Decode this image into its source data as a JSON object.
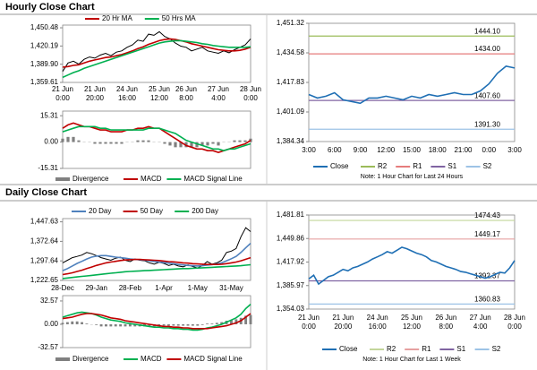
{
  "sections": [
    {
      "title": "Hourly Close Chart"
    },
    {
      "title": "Daily Close Chart"
    }
  ],
  "chart_data": [
    {
      "type": "line",
      "legend": "top",
      "categories": [
        [
          "21 Jun",
          "0:00"
        ],
        null,
        null,
        null,
        null,
        null,
        [
          "21 Jun",
          "20:00"
        ],
        null,
        null,
        null,
        null,
        null,
        [
          "24 Jun",
          "16:00"
        ],
        null,
        null,
        null,
        null,
        null,
        [
          "25 Jun",
          "12:00"
        ],
        null,
        null,
        null,
        null,
        [
          "26 Jun",
          "8:00"
        ],
        null,
        null,
        null,
        null,
        null,
        [
          "27 Jun",
          "4:00"
        ],
        null,
        null,
        null,
        null,
        null,
        [
          "28 Jun",
          "0:00"
        ]
      ],
      "ylim": [
        1359.61,
        1455
      ],
      "yticks": [
        {
          "value": 1359.61,
          "label": "1,359.61"
        },
        {
          "value": 1389.9,
          "label": "1,389.90"
        },
        {
          "value": 1420.19,
          "label": "1,420.19"
        },
        {
          "value": 1450.48,
          "label": "1,450.48"
        }
      ],
      "series": [
        {
          "color": "#000000",
          "values": [
            1378,
            1392,
            1395,
            1390,
            1398,
            1402,
            1400,
            1405,
            1408,
            1404,
            1410,
            1412,
            1418,
            1422,
            1430,
            1428,
            1440,
            1438,
            1444,
            1436,
            1432,
            1425,
            1420,
            1418,
            1412,
            1415,
            1418,
            1412,
            1410,
            1408,
            1412,
            1409,
            1414,
            1418,
            1422,
            1432
          ]
        },
        {
          "name": "20 Hr MA",
          "color": "#c00000",
          "values": [
            1385,
            1386,
            1388,
            1389,
            1392,
            1395,
            1397,
            1399,
            1401,
            1402,
            1404,
            1406,
            1409,
            1412,
            1416,
            1419,
            1423,
            1426,
            1429,
            1431,
            1432,
            1431,
            1429,
            1427,
            1424,
            1422,
            1420,
            1418,
            1416,
            1414,
            1413,
            1412,
            1412,
            1413,
            1415,
            1418
          ]
        },
        {
          "name": "50 Hrs MA",
          "color": "#00b050",
          "values": [
            1368,
            1372,
            1376,
            1379,
            1383,
            1386,
            1389,
            1392,
            1395,
            1398,
            1401,
            1404,
            1407,
            1410,
            1413,
            1416,
            1419,
            1422,
            1425,
            1427,
            1428,
            1429,
            1429,
            1428,
            1427,
            1426,
            1424,
            1423,
            1421,
            1420,
            1419,
            1418,
            1418,
            1418,
            1418,
            1419
          ]
        }
      ]
    },
    {
      "type": "line",
      "legend": "bottom",
      "ylim": [
        -15.31,
        18
      ],
      "yticks": [
        -15.31,
        {
          "value": 0,
          "label": "0.00"
        },
        15.31
      ],
      "series": [
        {
          "name": "Divergence",
          "type": "bar",
          "color": "#808080",
          "values": [
            2,
            3,
            3,
            1,
            0,
            0,
            -1,
            -1,
            -1,
            -1,
            -1,
            -1,
            0,
            0,
            1,
            1,
            1,
            0,
            0,
            -1,
            -2,
            -3,
            -3,
            -3,
            -3,
            -3,
            -2,
            -2,
            -1,
            -2,
            0,
            0,
            1,
            1,
            1,
            2
          ]
        },
        {
          "name": "MACD",
          "color": "#c00000",
          "values": [
            8,
            10,
            11,
            10,
            9,
            9,
            8,
            7,
            7,
            6,
            6,
            6,
            7,
            7,
            8,
            8,
            9,
            8,
            8,
            6,
            4,
            2,
            0,
            -2,
            -3,
            -4,
            -4,
            -5,
            -5,
            -6,
            -5,
            -4,
            -3,
            -2,
            -1,
            1
          ]
        },
        {
          "name": "MACD Signal Line",
          "color": "#00b050",
          "values": [
            6,
            7,
            8,
            9,
            9,
            9,
            9,
            8,
            8,
            7,
            7,
            7,
            7,
            7,
            7,
            7,
            8,
            8,
            8,
            7,
            6,
            5,
            3,
            1,
            0,
            -1,
            -2,
            -3,
            -4,
            -4,
            -5,
            -4,
            -4,
            -3,
            -2,
            -1
          ]
        }
      ]
    },
    {
      "type": "line",
      "legend": "bottom",
      "note": "Note: 1 Hour Chart for Last 24 Hours",
      "categories": [
        [
          "3:00"
        ],
        null,
        null,
        [
          "6:00"
        ],
        null,
        null,
        [
          "9:00"
        ],
        null,
        null,
        [
          "12:00"
        ],
        null,
        null,
        [
          "15:00"
        ],
        null,
        null,
        [
          "18:00"
        ],
        null,
        null,
        [
          "21:00"
        ],
        null,
        null,
        [
          "0:00"
        ],
        null,
        null,
        [
          "3:00"
        ]
      ],
      "ylim": [
        1384.34,
        1451.32
      ],
      "yticks": [
        {
          "value": 1384.34,
          "label": "1,384.34"
        },
        {
          "value": 1401.09,
          "label": "1,401.09"
        },
        {
          "value": 1417.83,
          "label": "1,417.83"
        },
        {
          "value": 1434.58,
          "label": "1,434.58"
        },
        {
          "value": 1451.32,
          "label": "1,451.32"
        }
      ],
      "series": [
        {
          "name": "Close",
          "color": "#1f6fb4",
          "values": [
            1411,
            1409,
            1410,
            1412,
            1408,
            1407,
            1406,
            1409,
            1409,
            1410,
            1409,
            1408,
            1410,
            1409,
            1411,
            1410,
            1411,
            1412,
            1411,
            1411,
            1413,
            1417,
            1423,
            1427,
            1426
          ]
        }
      ],
      "levels": [
        {
          "name": "R2",
          "value": 1444.1,
          "label": "1444.10",
          "color": "#9bbb59"
        },
        {
          "name": "R1",
          "value": 1434,
          "label": "1434.00",
          "color": "#e67c7c"
        },
        {
          "name": "S1",
          "value": 1407.6,
          "label": "1407.60",
          "color": "#8064a2"
        },
        {
          "name": "S2",
          "value": 1391.3,
          "label": "1391.30",
          "color": "#9dc3e6"
        }
      ]
    },
    {
      "type": "line",
      "legend": "top",
      "categories": [
        [
          "28-Dec"
        ],
        null,
        null,
        null,
        null,
        null,
        null,
        [
          "29-Jan"
        ],
        null,
        null,
        null,
        null,
        null,
        null,
        [
          "28-Feb"
        ],
        null,
        null,
        null,
        null,
        null,
        null,
        [
          "1-Apr"
        ],
        null,
        null,
        null,
        null,
        null,
        null,
        [
          "1-May"
        ],
        null,
        null,
        null,
        null,
        null,
        null,
        [
          "31-May"
        ],
        null,
        null,
        null,
        null
      ],
      "ylim": [
        1222.65,
        1460
      ],
      "yticks": [
        {
          "value": 1222.65,
          "label": "1,222.65"
        },
        {
          "value": 1297.64,
          "label": "1,297.64"
        },
        {
          "value": 1372.64,
          "label": "1,372.64"
        },
        {
          "value": 1447.63,
          "label": "1,447.63"
        }
      ],
      "series": [
        {
          "color": "#000000",
          "values": [
            1290,
            1300,
            1310,
            1315,
            1320,
            1330,
            1325,
            1318,
            1310,
            1305,
            1300,
            1308,
            1312,
            1300,
            1295,
            1305,
            1300,
            1298,
            1290,
            1285,
            1292,
            1288,
            1280,
            1285,
            1278,
            1275,
            1282,
            1276,
            1270,
            1280,
            1295,
            1285,
            1290,
            1300,
            1330,
            1335,
            1345,
            1390,
            1425,
            1410
          ]
        },
        {
          "name": "20 Day",
          "color": "#4f81bd",
          "values": [
            1260,
            1268,
            1278,
            1288,
            1296,
            1305,
            1312,
            1316,
            1318,
            1318,
            1315,
            1312,
            1310,
            1308,
            1305,
            1303,
            1302,
            1300,
            1298,
            1295,
            1293,
            1291,
            1289,
            1287,
            1284,
            1282,
            1280,
            1279,
            1278,
            1279,
            1281,
            1283,
            1286,
            1290,
            1298,
            1306,
            1315,
            1330,
            1348,
            1365
          ]
        },
        {
          "name": "50 Day",
          "color": "#c00000",
          "values": [
            1245,
            1248,
            1252,
            1257,
            1262,
            1268,
            1274,
            1280,
            1285,
            1290,
            1293,
            1296,
            1299,
            1301,
            1302,
            1303,
            1303,
            1302,
            1301,
            1300,
            1299,
            1297,
            1295,
            1294,
            1292,
            1290,
            1289,
            1287,
            1286,
            1285,
            1284,
            1284,
            1284,
            1285,
            1287,
            1290,
            1293,
            1298,
            1304,
            1310
          ]
        },
        {
          "name": "200 Day",
          "color": "#00b050",
          "values": [
            1230,
            1232,
            1234,
            1236,
            1238,
            1240,
            1242,
            1244,
            1246,
            1248,
            1250,
            1252,
            1254,
            1256,
            1257,
            1258,
            1259,
            1260,
            1261,
            1262,
            1263,
            1264,
            1265,
            1266,
            1267,
            1268,
            1268,
            1269,
            1270,
            1271,
            1272,
            1273,
            1274,
            1275,
            1276,
            1277,
            1278,
            1279,
            1281,
            1283
          ]
        }
      ]
    },
    {
      "type": "line",
      "legend": "bottom",
      "ylim": [
        -32.57,
        40
      ],
      "yticks": [
        -32.57,
        {
          "value": 0,
          "label": "0.00"
        },
        32.57
      ],
      "series": [
        {
          "name": "Divergence",
          "type": "bar",
          "color": "#808080",
          "values": [
            2,
            3,
            4,
            4,
            3,
            1,
            0,
            -1,
            -3,
            -3,
            -3,
            -3,
            -3,
            -3,
            -3,
            -3,
            -3,
            -3,
            -3,
            -3,
            -2,
            -2,
            -2,
            -2,
            -2,
            -2,
            -2,
            -2,
            -2,
            -1,
            1,
            1,
            2,
            3,
            5,
            6,
            7,
            9,
            12,
            13
          ]
        },
        {
          "name": "MACD",
          "color": "#00b050",
          "values": [
            10,
            12,
            14,
            16,
            17,
            16,
            15,
            13,
            10,
            8,
            6,
            5,
            4,
            2,
            1,
            0,
            -1,
            -2,
            -3,
            -4,
            -4,
            -5,
            -5,
            -6,
            -6,
            -7,
            -7,
            -8,
            -8,
            -7,
            -5,
            -4,
            -2,
            0,
            3,
            6,
            9,
            14,
            22,
            28
          ]
        },
        {
          "name": "MACD Signal Line",
          "color": "#c00000",
          "values": [
            8,
            9,
            10,
            12,
            14,
            15,
            15,
            14,
            13,
            11,
            9,
            8,
            7,
            5,
            4,
            3,
            2,
            1,
            0,
            -1,
            -2,
            -3,
            -3,
            -4,
            -4,
            -5,
            -5,
            -6,
            -6,
            -6,
            -6,
            -5,
            -4,
            -3,
            -2,
            0,
            2,
            5,
            10,
            15
          ]
        }
      ]
    },
    {
      "type": "line",
      "legend": "bottom",
      "note": "Note: 1 Hour Chart for Last 1 Week",
      "categories": [
        [
          "21 Jun",
          "0:00"
        ],
        null,
        null,
        null,
        null,
        null,
        null,
        [
          "21 Jun",
          "20:00"
        ],
        null,
        null,
        null,
        null,
        null,
        null,
        [
          "24 Jun",
          "16:00"
        ],
        null,
        null,
        null,
        null,
        null,
        null,
        [
          "25 Jun",
          "12:00"
        ],
        null,
        null,
        null,
        null,
        null,
        null,
        [
          "26 Jun",
          "8:00"
        ],
        null,
        null,
        null,
        null,
        null,
        null,
        [
          "27 Jun",
          "4:00"
        ],
        null,
        null,
        null,
        null,
        null,
        null,
        [
          "28 Jun",
          "0:00"
        ]
      ],
      "ylim": [
        1354.03,
        1481.81
      ],
      "yticks": [
        {
          "value": 1354.03,
          "label": "1,354.03"
        },
        {
          "value": 1385.97,
          "label": "1,385.97"
        },
        {
          "value": 1417.92,
          "label": "1,417.92"
        },
        {
          "value": 1449.86,
          "label": "1,449.86"
        },
        {
          "value": 1481.81,
          "label": "1,481.81"
        }
      ],
      "series": [
        {
          "name": "Close",
          "color": "#1f6fb4",
          "values": [
            1395,
            1400,
            1388,
            1393,
            1398,
            1400,
            1404,
            1408,
            1406,
            1410,
            1412,
            1415,
            1418,
            1422,
            1425,
            1428,
            1432,
            1430,
            1434,
            1438,
            1436,
            1433,
            1430,
            1428,
            1425,
            1420,
            1418,
            1415,
            1412,
            1410,
            1408,
            1405,
            1404,
            1402,
            1400,
            1398,
            1396,
            1398,
            1401,
            1404,
            1403,
            1410,
            1420
          ]
        }
      ],
      "levels": [
        {
          "name": "R2",
          "value": 1474.43,
          "label": "1474.43",
          "color": "#c3d69b"
        },
        {
          "name": "R1",
          "value": 1449.17,
          "label": "1449.17",
          "color": "#e6a0a0"
        },
        {
          "name": "S1",
          "value": 1392.37,
          "label": "1392.37",
          "color": "#8064a2"
        },
        {
          "name": "S2",
          "value": 1360.83,
          "label": "1360.83",
          "color": "#9dc3e6"
        }
      ]
    }
  ]
}
